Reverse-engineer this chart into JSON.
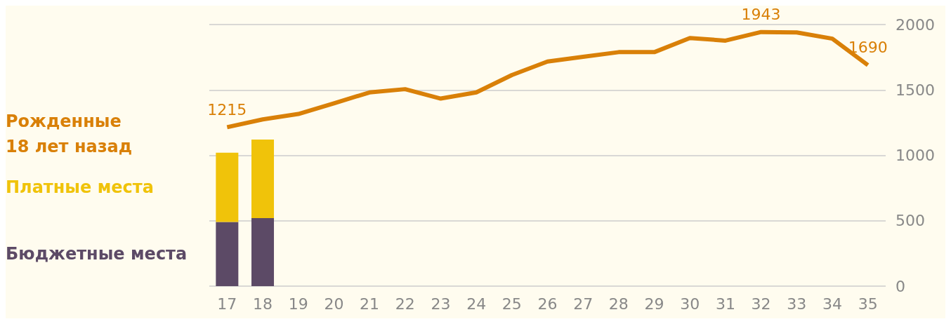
{
  "chart_data": {
    "type": "bar",
    "stacked": true,
    "categories": [
      "17",
      "18",
      "19",
      "20",
      "21",
      "22",
      "23",
      "24",
      "25",
      "26",
      "27",
      "28",
      "29",
      "30",
      "31",
      "32",
      "33",
      "34",
      "35"
    ],
    "series": [
      {
        "name": "Бюджетные места",
        "color": "#5c4a66",
        "values": [
          490,
          520,
          null,
          null,
          null,
          null,
          null,
          null,
          null,
          null,
          null,
          null,
          null,
          null,
          null,
          null,
          null,
          null,
          null
        ]
      },
      {
        "name": "Платные места",
        "color": "#f0c30a",
        "values": [
          530,
          600,
          null,
          null,
          null,
          null,
          null,
          null,
          null,
          null,
          null,
          null,
          null,
          null,
          null,
          null,
          null,
          null,
          null
        ]
      },
      {
        "name": "Рожденные\n18 лет назад",
        "type": "line",
        "color": "#d98008",
        "values": [
          1215,
          1275,
          1316,
          1398,
          1481,
          1506,
          1434,
          1481,
          1614,
          1717,
          1753,
          1789,
          1789,
          1897,
          1877,
          1943,
          1940,
          1892,
          1690
        ],
        "value_labels": [
          "1215",
          null,
          null,
          null,
          null,
          null,
          null,
          null,
          null,
          null,
          null,
          null,
          null,
          null,
          null,
          "1943",
          null,
          null,
          "1690"
        ]
      }
    ],
    "ylim": [
      0,
      2000
    ],
    "yticks": [
      0,
      500,
      1000,
      1500,
      2000
    ],
    "grid": "y",
    "legend": "left",
    "marker": "none"
  }
}
